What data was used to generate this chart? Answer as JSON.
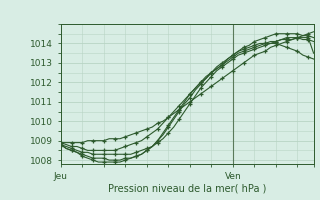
{
  "title": "",
  "xlabel": "Pression niveau de la mer( hPa )",
  "ylabel": "",
  "bg_color": "#d8ede4",
  "grid_color": "#b8d4c4",
  "line_color": "#2d5a2d",
  "xlim": [
    0,
    47
  ],
  "ylim": [
    1007.8,
    1015.0
  ],
  "yticks": [
    1008,
    1009,
    1010,
    1011,
    1012,
    1013,
    1014
  ],
  "xtick_positions": [
    0,
    32,
    47
  ],
  "xtick_labels": [
    "Jeu",
    "Ven",
    ""
  ],
  "vline_x": 32,
  "series": [
    [
      1008.8,
      1008.7,
      1008.6,
      1008.5,
      1008.4,
      1008.4,
      1008.3,
      1008.3,
      1008.3,
      1008.3,
      1008.3,
      1008.3,
      1008.3,
      1008.3,
      1008.4,
      1008.5,
      1008.6,
      1008.7,
      1008.9,
      1009.1,
      1009.4,
      1009.7,
      1010.1,
      1010.5,
      1010.9,
      1011.3,
      1011.7,
      1012.0,
      1012.3,
      1012.6,
      1012.8,
      1013.0,
      1013.2,
      1013.4,
      1013.5,
      1013.6,
      1013.7,
      1013.8,
      1013.9,
      1014.0,
      1014.1,
      1014.2,
      1014.3,
      1014.3,
      1014.3,
      1014.2,
      1014.2,
      1014.1
    ],
    [
      1008.8,
      1008.6,
      1008.5,
      1008.4,
      1008.3,
      1008.2,
      1008.1,
      1008.1,
      1008.1,
      1008.0,
      1008.0,
      1008.0,
      1008.1,
      1008.1,
      1008.2,
      1008.3,
      1008.5,
      1008.7,
      1009.0,
      1009.3,
      1009.7,
      1010.1,
      1010.5,
      1010.9,
      1011.2,
      1011.6,
      1011.9,
      1012.2,
      1012.5,
      1012.8,
      1013.0,
      1013.2,
      1013.4,
      1013.6,
      1013.7,
      1013.8,
      1013.9,
      1014.0,
      1014.0,
      1014.1,
      1014.1,
      1014.2,
      1014.2,
      1014.2,
      1014.3,
      1014.3,
      1014.3,
      1013.5
    ],
    [
      1008.8,
      1008.6,
      1008.5,
      1008.4,
      1008.2,
      1008.1,
      1008.0,
      1007.9,
      1007.9,
      1007.9,
      1007.9,
      1007.9,
      1008.0,
      1008.1,
      1008.2,
      1008.3,
      1008.5,
      1008.7,
      1009.0,
      1009.4,
      1009.8,
      1010.2,
      1010.6,
      1011.0,
      1011.4,
      1011.7,
      1012.0,
      1012.3,
      1012.5,
      1012.7,
      1012.9,
      1013.1,
      1013.3,
      1013.5,
      1013.6,
      1013.7,
      1013.8,
      1013.9,
      1014.0,
      1014.0,
      1014.0,
      1013.9,
      1013.8,
      1013.7,
      1013.6,
      1013.4,
      1013.3,
      1013.2
    ],
    [
      1008.9,
      1008.8,
      1008.7,
      1008.7,
      1008.6,
      1008.5,
      1008.5,
      1008.5,
      1008.5,
      1008.5,
      1008.5,
      1008.6,
      1008.7,
      1008.8,
      1008.9,
      1009.0,
      1009.2,
      1009.4,
      1009.6,
      1009.9,
      1010.2,
      1010.5,
      1010.8,
      1011.1,
      1011.4,
      1011.7,
      1012.0,
      1012.2,
      1012.5,
      1012.7,
      1012.9,
      1013.2,
      1013.4,
      1013.6,
      1013.8,
      1013.9,
      1014.1,
      1014.2,
      1014.3,
      1014.4,
      1014.5,
      1014.5,
      1014.5,
      1014.5,
      1014.5,
      1014.4,
      1014.4,
      1014.3
    ],
    [
      1008.9,
      1008.9,
      1008.9,
      1008.9,
      1008.9,
      1009.0,
      1009.0,
      1009.0,
      1009.0,
      1009.1,
      1009.1,
      1009.1,
      1009.2,
      1009.3,
      1009.4,
      1009.5,
      1009.6,
      1009.7,
      1009.9,
      1010.0,
      1010.2,
      1010.4,
      1010.6,
      1010.8,
      1011.0,
      1011.2,
      1011.4,
      1011.6,
      1011.8,
      1012.0,
      1012.2,
      1012.4,
      1012.6,
      1012.8,
      1013.0,
      1013.2,
      1013.4,
      1013.5,
      1013.6,
      1013.8,
      1013.9,
      1014.0,
      1014.1,
      1014.2,
      1014.3,
      1014.4,
      1014.5,
      1014.6
    ]
  ]
}
